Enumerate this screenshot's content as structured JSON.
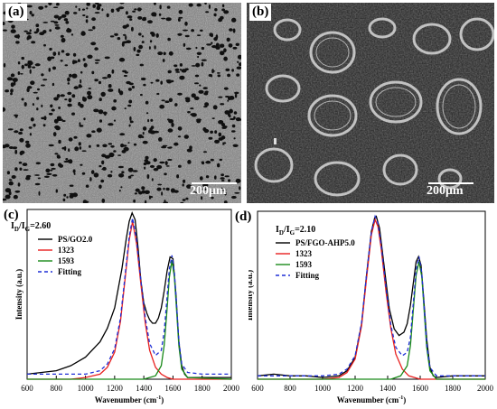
{
  "figure": {
    "panels": {
      "a": {
        "tag": "(a)",
        "scale": "200μm"
      },
      "b": {
        "tag": "(b)",
        "scale": "200μm"
      },
      "c": {
        "tag": "(c)"
      },
      "d": {
        "tag": "(d)"
      }
    }
  },
  "colors": {
    "black": "#000000",
    "red": "#e8201f",
    "green": "#1a8a1a",
    "blue": "#1f2fd6"
  },
  "chart_data": [
    {
      "type": "line",
      "panel": "(c)",
      "ratio_label": "ID/IG=2.60",
      "xlabel": "Wavenumber (cm-1)",
      "ylabel": "Intensity (a.u.)",
      "xlim": [
        600,
        2000
      ],
      "x_ticks": [
        600,
        800,
        1000,
        1200,
        1400,
        1600,
        1800,
        2000
      ],
      "legend_position": "top-left",
      "series": [
        {
          "name": "PS/GO2.0",
          "color": "#000000",
          "style": "solid",
          "x": [
            600,
            700,
            800,
            900,
            1000,
            1100,
            1150,
            1200,
            1250,
            1280,
            1300,
            1320,
            1340,
            1360,
            1380,
            1400,
            1420,
            1440,
            1460,
            1480,
            1500,
            1520,
            1540,
            1560,
            1580,
            1600,
            1620,
            1640,
            1660,
            1680,
            1700,
            1800,
            1900,
            2000
          ],
          "y": [
            0.03,
            0.04,
            0.05,
            0.08,
            0.13,
            0.22,
            0.3,
            0.42,
            0.65,
            0.83,
            0.93,
            0.98,
            0.94,
            0.78,
            0.58,
            0.45,
            0.39,
            0.35,
            0.33,
            0.33,
            0.36,
            0.42,
            0.52,
            0.64,
            0.72,
            0.71,
            0.5,
            0.22,
            0.08,
            0.03,
            0.01,
            0.01,
            0.01,
            0.01
          ]
        },
        {
          "name": "1323",
          "color": "#e8201f",
          "style": "solid",
          "x": [
            600,
            900,
            1000,
            1100,
            1150,
            1200,
            1240,
            1270,
            1300,
            1323,
            1350,
            1380,
            1410,
            1440,
            1480,
            1520,
            1560,
            1600,
            1700,
            2000
          ],
          "y": [
            0.0,
            0.0,
            0.01,
            0.03,
            0.07,
            0.16,
            0.34,
            0.58,
            0.82,
            0.93,
            0.8,
            0.56,
            0.33,
            0.17,
            0.07,
            0.03,
            0.01,
            0.0,
            0.0,
            0.0
          ]
        },
        {
          "name": "1593",
          "color": "#1a8a1a",
          "style": "solid",
          "x": [
            600,
            1400,
            1480,
            1520,
            1540,
            1560,
            1575,
            1593,
            1610,
            1625,
            1640,
            1660,
            1700,
            2000
          ],
          "y": [
            0.0,
            0.0,
            0.02,
            0.08,
            0.2,
            0.42,
            0.6,
            0.7,
            0.6,
            0.4,
            0.2,
            0.06,
            0.01,
            0.0
          ]
        },
        {
          "name": "Fitting",
          "color": "#1f2fd6",
          "style": "dashed",
          "x": [
            600,
            700,
            800,
            900,
            1000,
            1100,
            1150,
            1200,
            1240,
            1270,
            1300,
            1323,
            1350,
            1380,
            1410,
            1440,
            1480,
            1520,
            1540,
            1560,
            1575,
            1593,
            1610,
            1625,
            1640,
            1660,
            1700,
            1800,
            2000
          ],
          "y": [
            0.03,
            0.03,
            0.03,
            0.03,
            0.03,
            0.05,
            0.09,
            0.18,
            0.36,
            0.6,
            0.84,
            0.95,
            0.82,
            0.58,
            0.36,
            0.21,
            0.14,
            0.17,
            0.28,
            0.49,
            0.65,
            0.73,
            0.63,
            0.43,
            0.23,
            0.09,
            0.04,
            0.03,
            0.03
          ]
        }
      ]
    },
    {
      "type": "line",
      "panel": "(d)",
      "ratio_label": "ID/IG=2.10",
      "xlabel": "Wavenumber (cm-1)",
      "ylabel": "Intensity (a.u.)",
      "xlim": [
        600,
        2000
      ],
      "x_ticks": [
        600,
        800,
        1000,
        1200,
        1400,
        1600,
        1800,
        2000
      ],
      "legend_position": "top-left",
      "series": [
        {
          "name": "PS/FGO-AHP5.0",
          "color": "#000000",
          "style": "solid",
          "x": [
            600,
            700,
            800,
            900,
            1000,
            1100,
            1150,
            1200,
            1240,
            1270,
            1300,
            1320,
            1330,
            1350,
            1380,
            1410,
            1440,
            1470,
            1500,
            1520,
            1540,
            1560,
            1575,
            1590,
            1605,
            1620,
            1640,
            1660,
            1680,
            1700,
            1800,
            2000
          ],
          "y": [
            0.02,
            0.03,
            0.02,
            0.02,
            0.01,
            0.02,
            0.05,
            0.13,
            0.33,
            0.62,
            0.88,
            0.96,
            0.97,
            0.9,
            0.66,
            0.42,
            0.3,
            0.26,
            0.28,
            0.33,
            0.44,
            0.59,
            0.7,
            0.73,
            0.68,
            0.5,
            0.24,
            0.07,
            0.02,
            0.01,
            0.02,
            0.02
          ]
        },
        {
          "name": "1323",
          "color": "#e8201f",
          "style": "solid",
          "x": [
            600,
            1000,
            1100,
            1150,
            1200,
            1240,
            1270,
            1300,
            1323,
            1340,
            1360,
            1390,
            1420,
            1450,
            1490,
            1530,
            1600,
            2000
          ],
          "y": [
            0.0,
            0.0,
            0.01,
            0.04,
            0.12,
            0.32,
            0.6,
            0.86,
            0.95,
            0.91,
            0.78,
            0.52,
            0.3,
            0.15,
            0.06,
            0.02,
            0.0,
            0.0
          ]
        },
        {
          "name": "1593",
          "color": "#1a8a1a",
          "style": "solid",
          "x": [
            600,
            1420,
            1480,
            1520,
            1540,
            1560,
            1575,
            1593,
            1610,
            1625,
            1640,
            1660,
            1700,
            2000
          ],
          "y": [
            0.0,
            0.0,
            0.02,
            0.08,
            0.2,
            0.44,
            0.62,
            0.7,
            0.61,
            0.4,
            0.19,
            0.05,
            0.0,
            0.0
          ]
        },
        {
          "name": "Fitting",
          "color": "#1f2fd6",
          "style": "dashed",
          "x": [
            600,
            700,
            800,
            900,
            1000,
            1100,
            1150,
            1200,
            1240,
            1270,
            1300,
            1323,
            1340,
            1360,
            1390,
            1420,
            1450,
            1490,
            1520,
            1540,
            1560,
            1575,
            1593,
            1610,
            1625,
            1640,
            1660,
            1700,
            1800,
            2000
          ],
          "y": [
            0.02,
            0.02,
            0.02,
            0.02,
            0.02,
            0.03,
            0.06,
            0.14,
            0.34,
            0.62,
            0.88,
            0.97,
            0.93,
            0.8,
            0.54,
            0.32,
            0.19,
            0.14,
            0.16,
            0.25,
            0.48,
            0.65,
            0.73,
            0.63,
            0.42,
            0.21,
            0.07,
            0.02,
            0.02,
            0.02
          ]
        }
      ]
    }
  ]
}
